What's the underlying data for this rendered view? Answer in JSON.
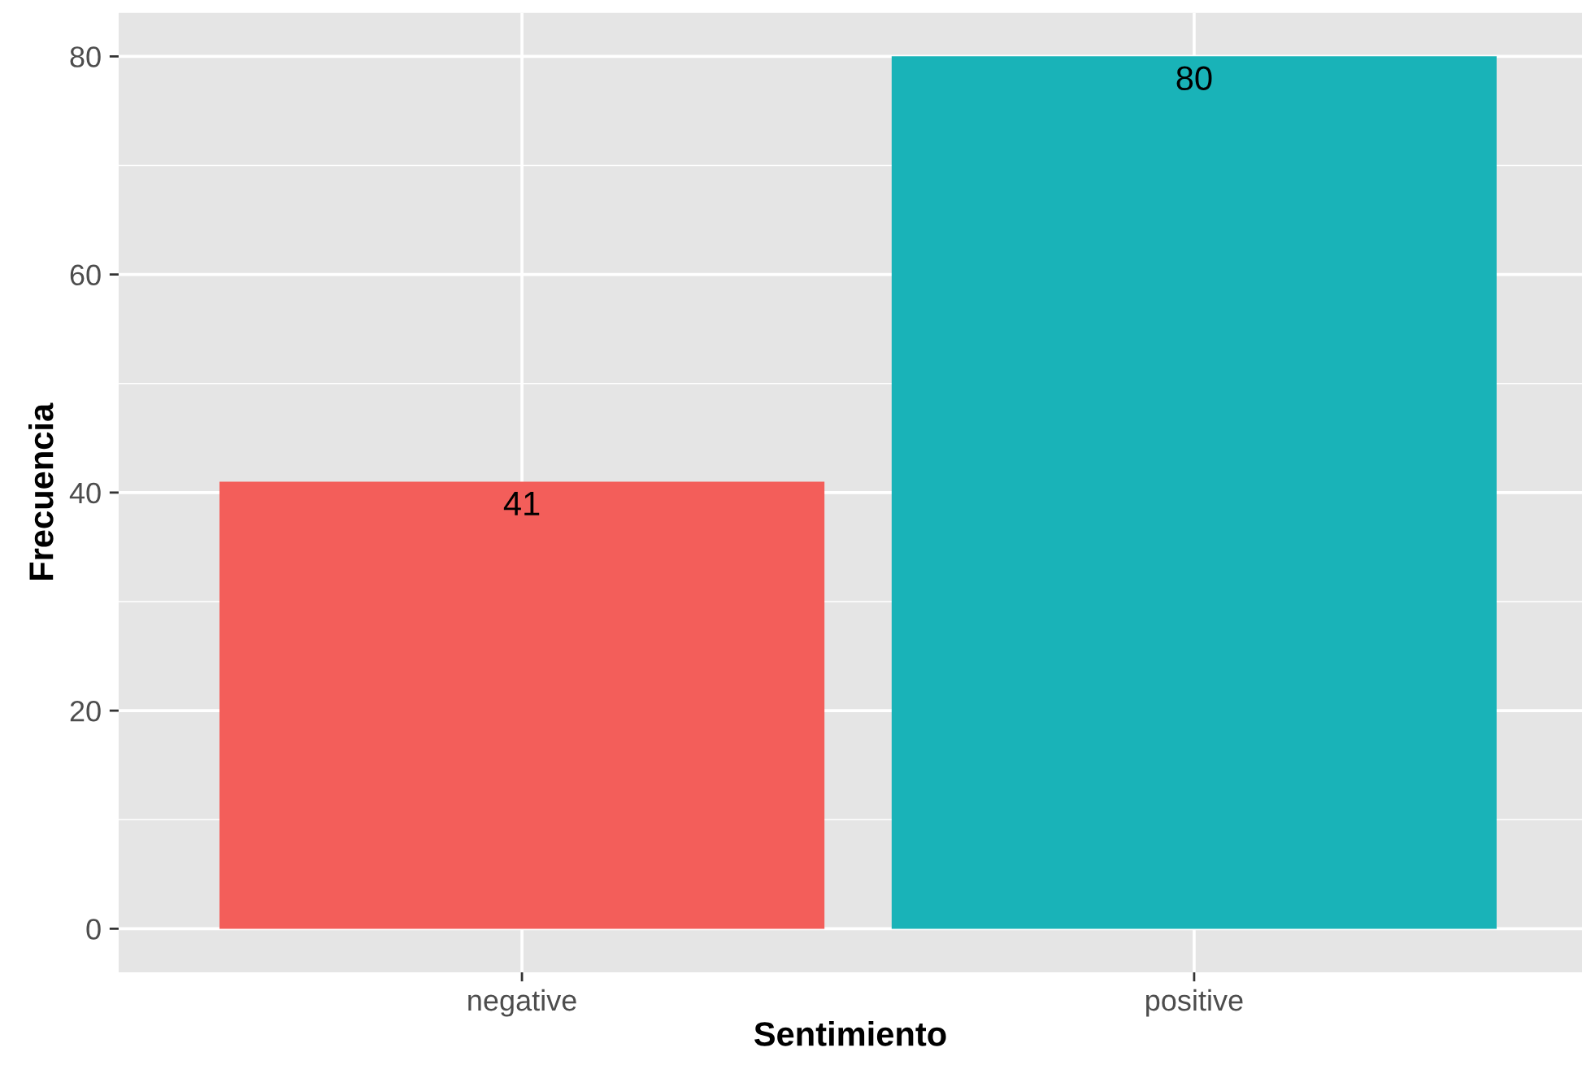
{
  "chart_data": {
    "type": "bar",
    "xlabel": "Sentimiento",
    "ylabel": "Frecuencia",
    "categories": [
      "negative",
      "positive"
    ],
    "values": [
      41,
      80
    ],
    "colors": [
      "#f35e5a",
      "#19b3b8"
    ],
    "ylim": [
      -4,
      84
    ],
    "yticks": [
      0,
      20,
      40,
      60,
      80
    ],
    "grid": true,
    "data_labels": true,
    "legend": false
  }
}
